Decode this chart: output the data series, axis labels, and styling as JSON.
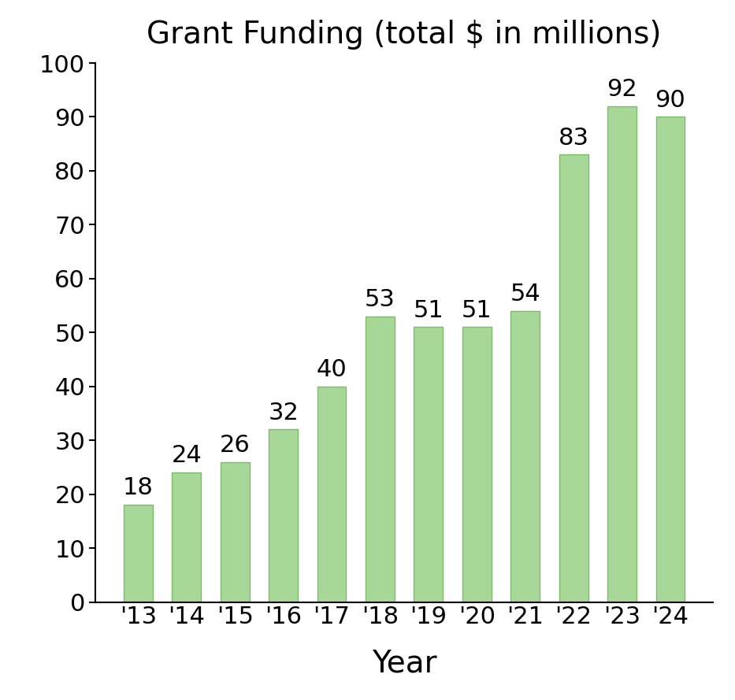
{
  "categories": [
    "'13",
    "'14",
    "'15",
    "'16",
    "'17",
    "'18",
    "'19",
    "'20",
    "'21",
    "'22",
    "'23",
    "'24"
  ],
  "values": [
    18,
    24,
    26,
    32,
    40,
    53,
    51,
    51,
    54,
    83,
    92,
    90
  ],
  "bar_color": "#a8d898",
  "bar_edgecolor": "#7dba6a",
  "title": "Grant Funding (total $ in millions)",
  "xlabel": "Year",
  "ylim": [
    0,
    100
  ],
  "yticks": [
    0,
    10,
    20,
    30,
    40,
    50,
    60,
    70,
    80,
    90,
    100
  ],
  "title_fontsize": 28,
  "xlabel_fontsize": 28,
  "tick_fontsize": 22,
  "label_fontsize": 22,
  "background_color": "#ffffff"
}
